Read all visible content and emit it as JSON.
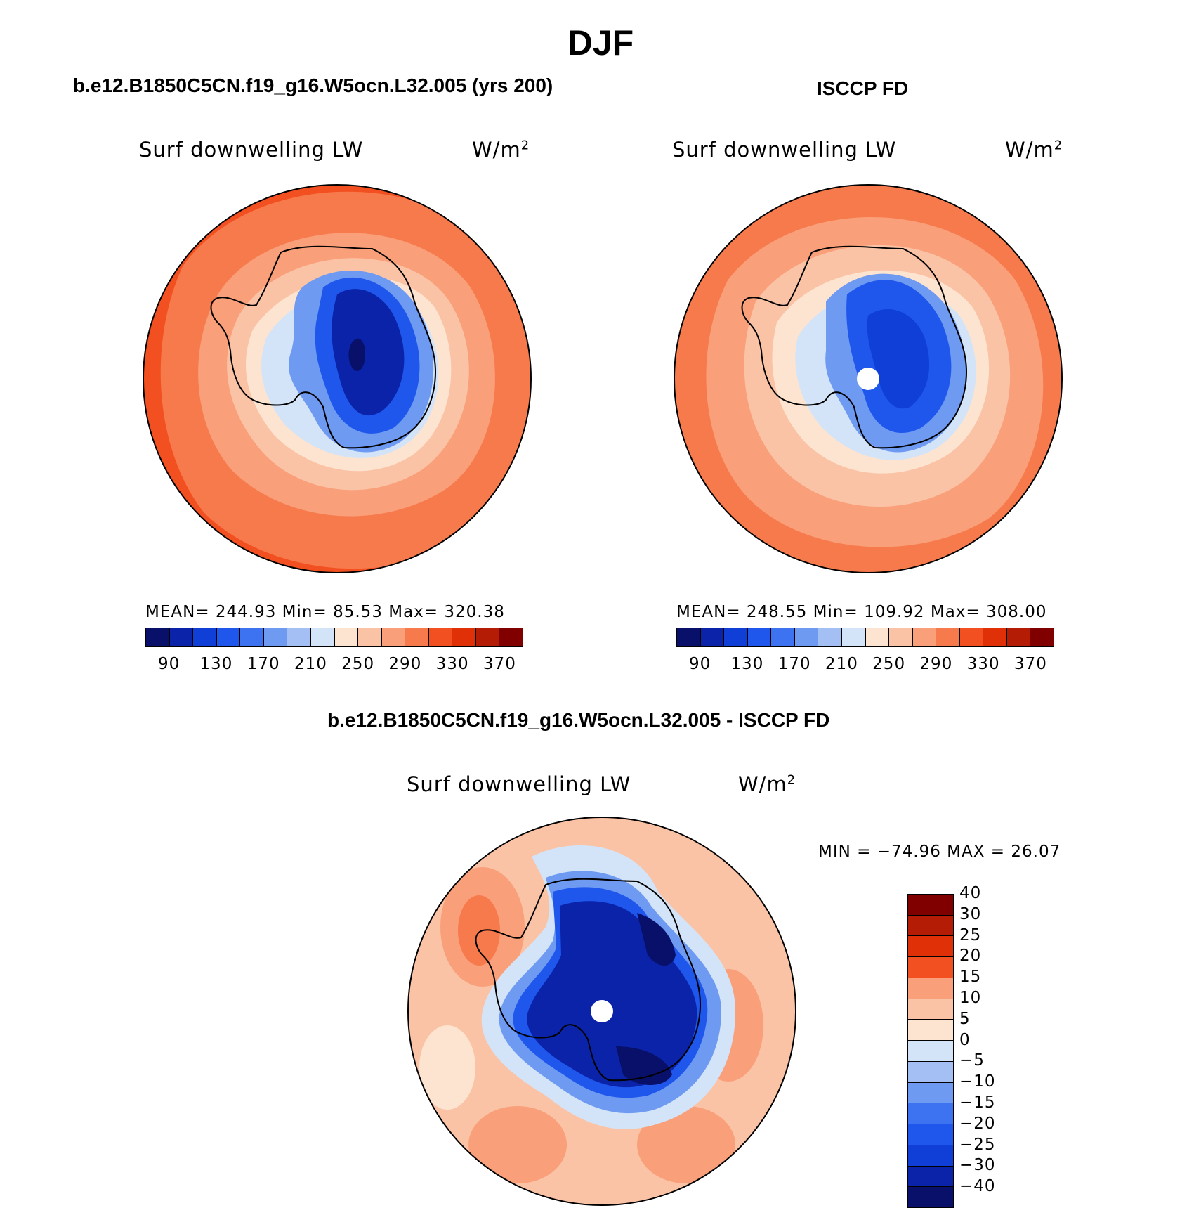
{
  "figure": {
    "title": "DJF"
  },
  "panels": [
    {
      "case": "b.e12.B1850C5CN.f19_g16.W5ocn.L32.005 (yrs 200)",
      "variable": "Surf downwelling LW",
      "units_base": "W/m",
      "units_exp": "2",
      "stats": "MEAN= 244.93   Min=   85.53   Max= 320.38"
    },
    {
      "case": "ISCCP FD",
      "variable": "Surf downwelling LW",
      "units_base": "W/m",
      "units_exp": "2",
      "stats": "MEAN= 248.55   Min= 109.92   Max= 308.00"
    },
    {
      "case": "b.e12.B1850C5CN.f19_g16.W5ocn.L32.005 - ISCCP FD",
      "variable": "Surf downwelling LW",
      "units_base": "W/m",
      "units_exp": "2",
      "stats": "MIN = −74.96 MAX =   26.07"
    }
  ],
  "colorbar_abs": {
    "colors": [
      "#08106a",
      "#0a23a8",
      "#0f3fd6",
      "#1f56ec",
      "#3d72f0",
      "#6e9af2",
      "#a3bff4",
      "#d3e4f8",
      "#fde4d0",
      "#fbc3a5",
      "#f99f7a",
      "#f77a4c",
      "#f25020",
      "#e03008",
      "#b51c05",
      "#800000"
    ],
    "ticks": [
      "90",
      "130",
      "170",
      "210",
      "250",
      "290",
      "330",
      "370"
    ]
  },
  "colorbar_diff": {
    "colors": [
      "#08106a",
      "#0a23a8",
      "#0f3fd6",
      "#1f56ec",
      "#3d72f0",
      "#6e9af2",
      "#a3bff4",
      "#d3e4f8",
      "#fde4d0",
      "#fbc3a5",
      "#f99f7a",
      "#f25020",
      "#e03008",
      "#b51c05",
      "#800000"
    ],
    "ticks": [
      "−40",
      "−30",
      "−25",
      "−20",
      "−15",
      "−10",
      "−5",
      "0",
      "5",
      "10",
      "15",
      "20",
      "25",
      "30",
      "40"
    ]
  },
  "chart_data": [
    {
      "type": "heatmap",
      "title": "Surf downwelling LW",
      "subtitle": "b.e12.B1850C5CN.f19_g16.W5ocn.L32.005 (yrs 200)",
      "units": "W/m2",
      "projection": "south polar stereographic",
      "mean": 244.93,
      "min": 85.53,
      "max": 320.38,
      "levels": [
        90,
        130,
        170,
        210,
        250,
        290,
        330,
        370
      ]
    },
    {
      "type": "heatmap",
      "title": "Surf downwelling LW",
      "subtitle": "ISCCP FD",
      "units": "W/m2",
      "projection": "south polar stereographic",
      "mean": 248.55,
      "min": 109.92,
      "max": 308.0,
      "levels": [
        90,
        130,
        170,
        210,
        250,
        290,
        330,
        370
      ]
    },
    {
      "type": "heatmap",
      "title": "Surf downwelling LW",
      "subtitle": "b.e12.B1850C5CN.f19_g16.W5ocn.L32.005 - ISCCP FD",
      "units": "W/m2",
      "projection": "south polar stereographic",
      "min": -74.96,
      "max": 26.07,
      "levels": [
        -40,
        -30,
        -25,
        -20,
        -15,
        -10,
        -5,
        0,
        5,
        10,
        15,
        20,
        25,
        30,
        40
      ]
    }
  ]
}
